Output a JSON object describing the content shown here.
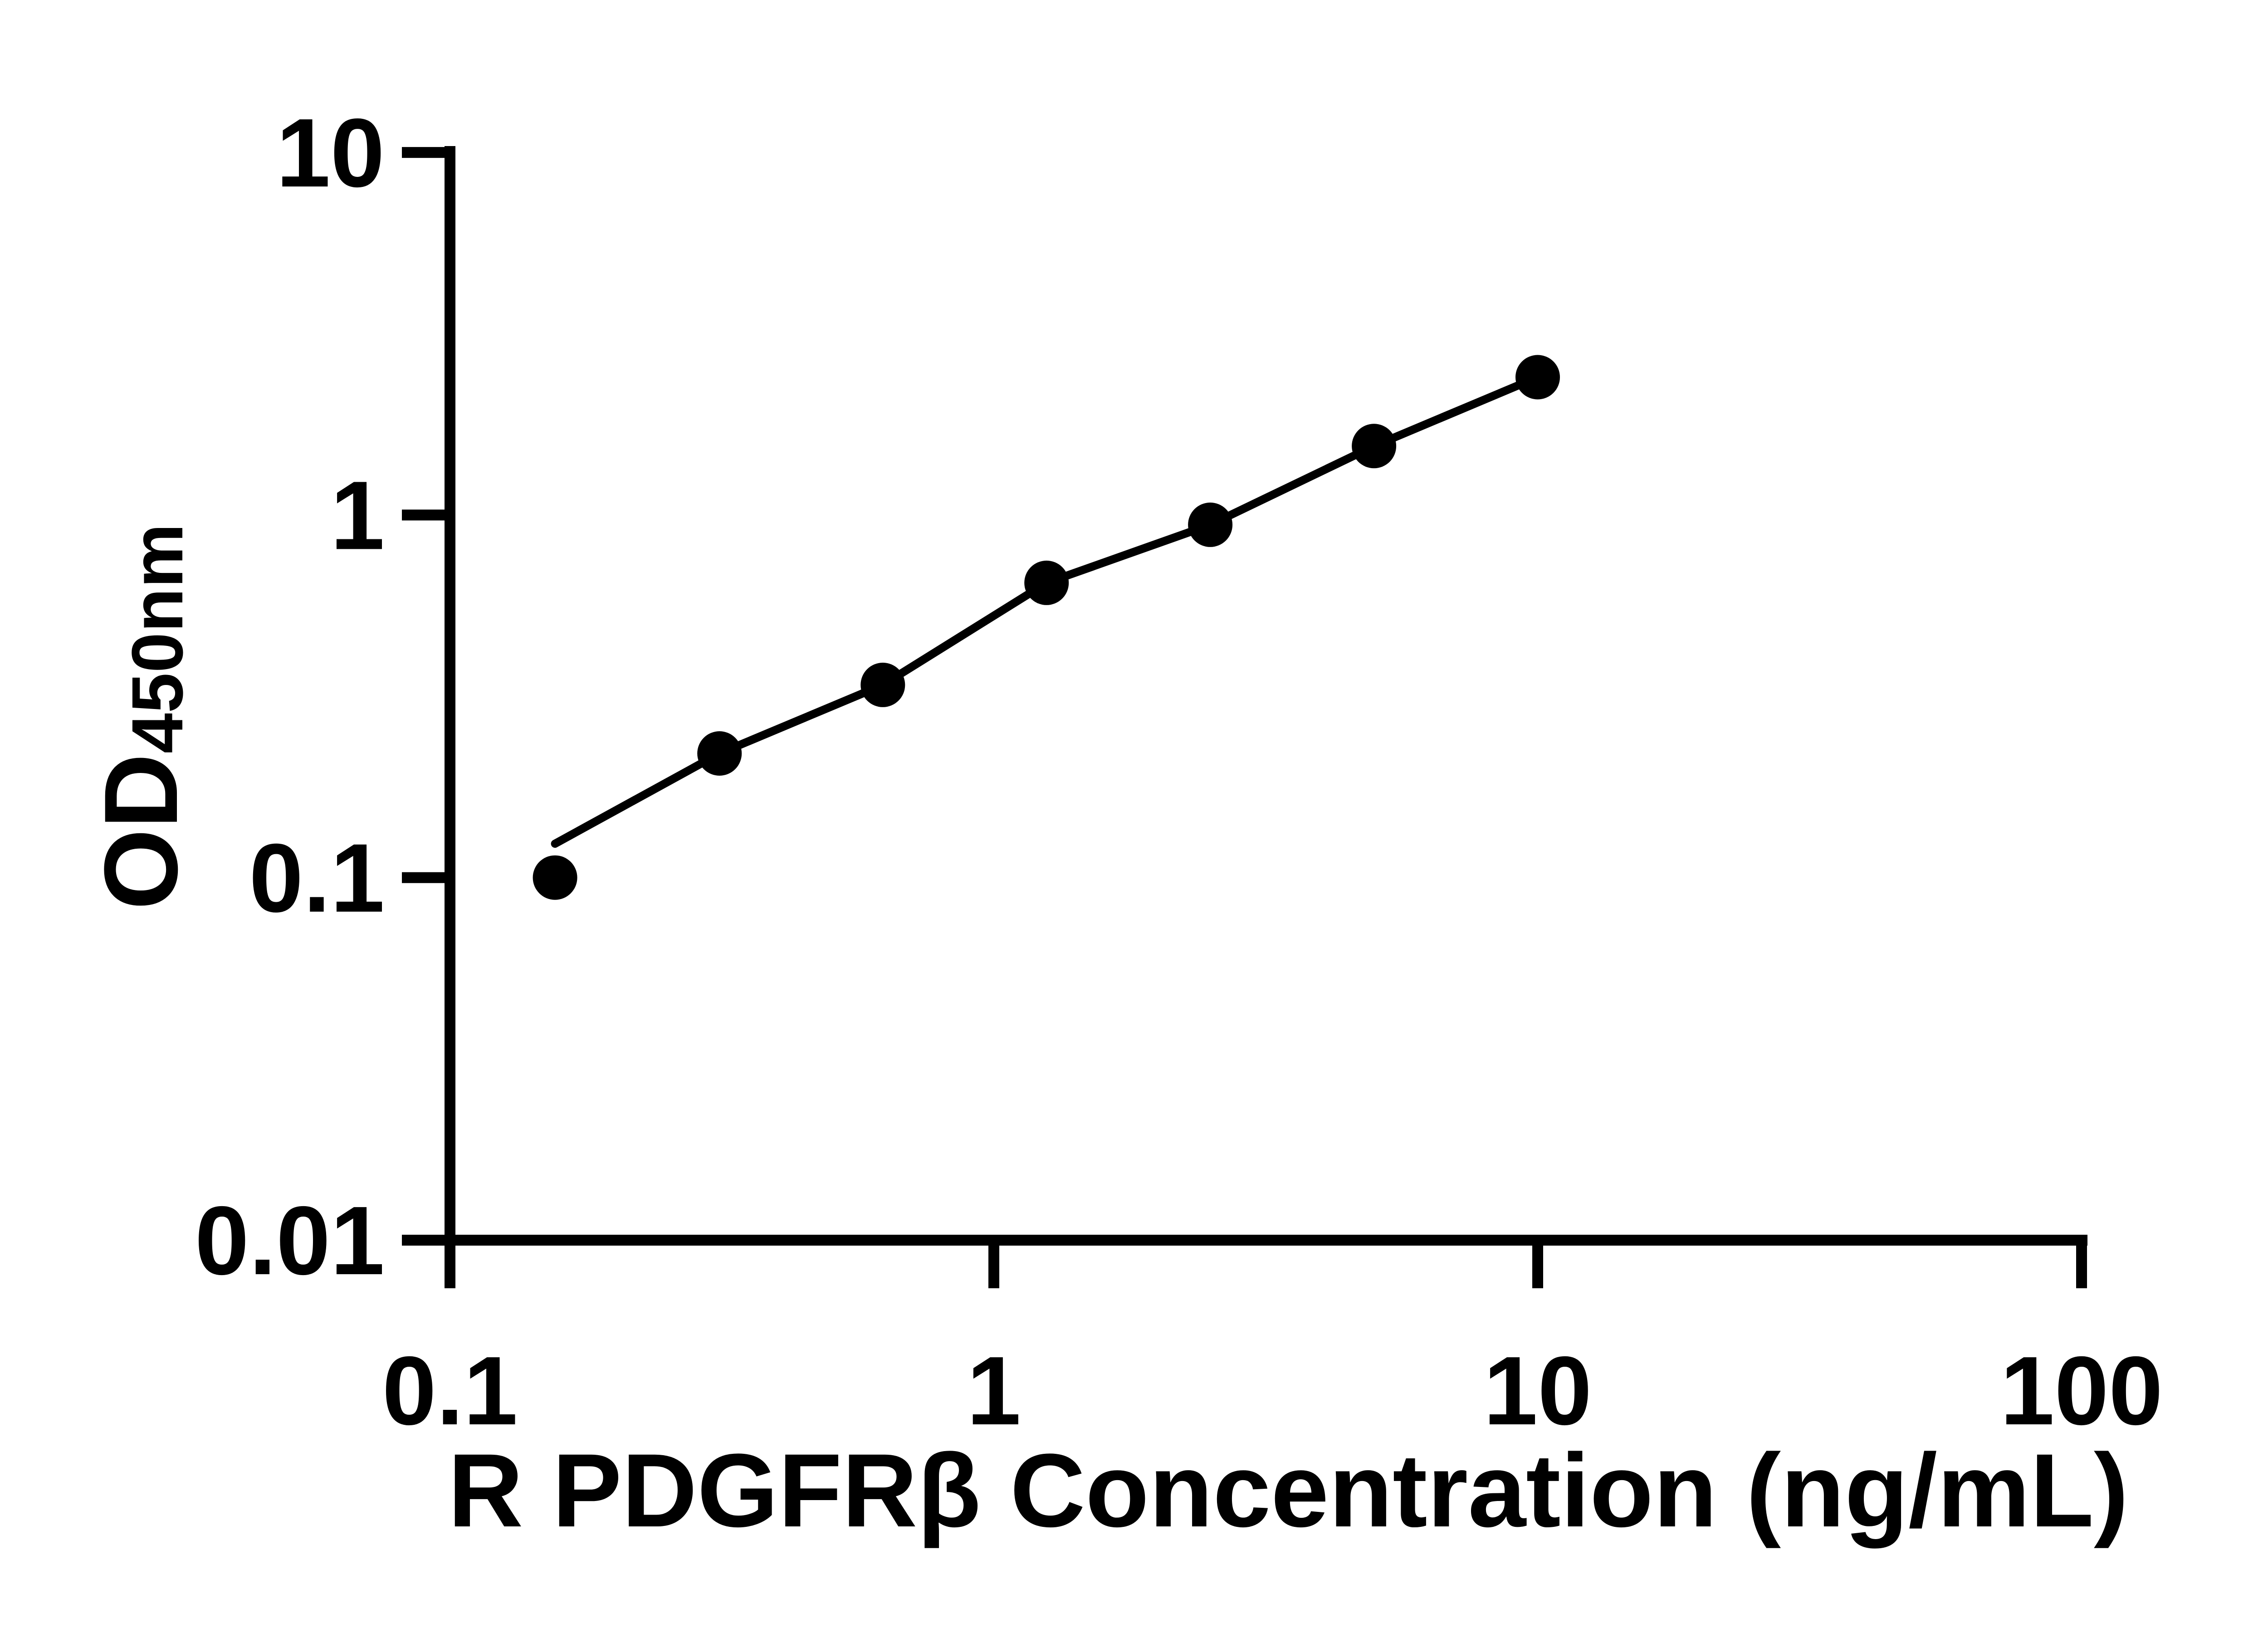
{
  "chart_data": {
    "type": "scatter",
    "scale": "log-log",
    "title": "",
    "xlabel": "R PDGFRβ Concentration (ng/mL)",
    "ylabel_main": "OD",
    "ylabel_sub": "450nm",
    "x": [
      0.156,
      0.313,
      0.625,
      1.25,
      2.5,
      5,
      10
    ],
    "y": [
      0.1,
      0.22,
      0.34,
      0.65,
      0.94,
      1.55,
      2.4
    ],
    "curve_start_od": 0.124,
    "x_ticks": [
      0.1,
      1,
      10,
      100
    ],
    "x_tick_labels": [
      "0.1",
      "1",
      "10",
      "100"
    ],
    "y_ticks": [
      10,
      1,
      0.1,
      0.01
    ],
    "y_tick_labels": [
      "10",
      "1",
      "0.1",
      "0.01"
    ],
    "xlim": [
      0.1,
      100
    ],
    "ylim": [
      0.01,
      10
    ],
    "grid": false,
    "legend": false,
    "marker": "filled-circle",
    "marker_color": "#000000",
    "line_color": "#000000",
    "axis_color": "#000000",
    "background": "#ffffff"
  }
}
